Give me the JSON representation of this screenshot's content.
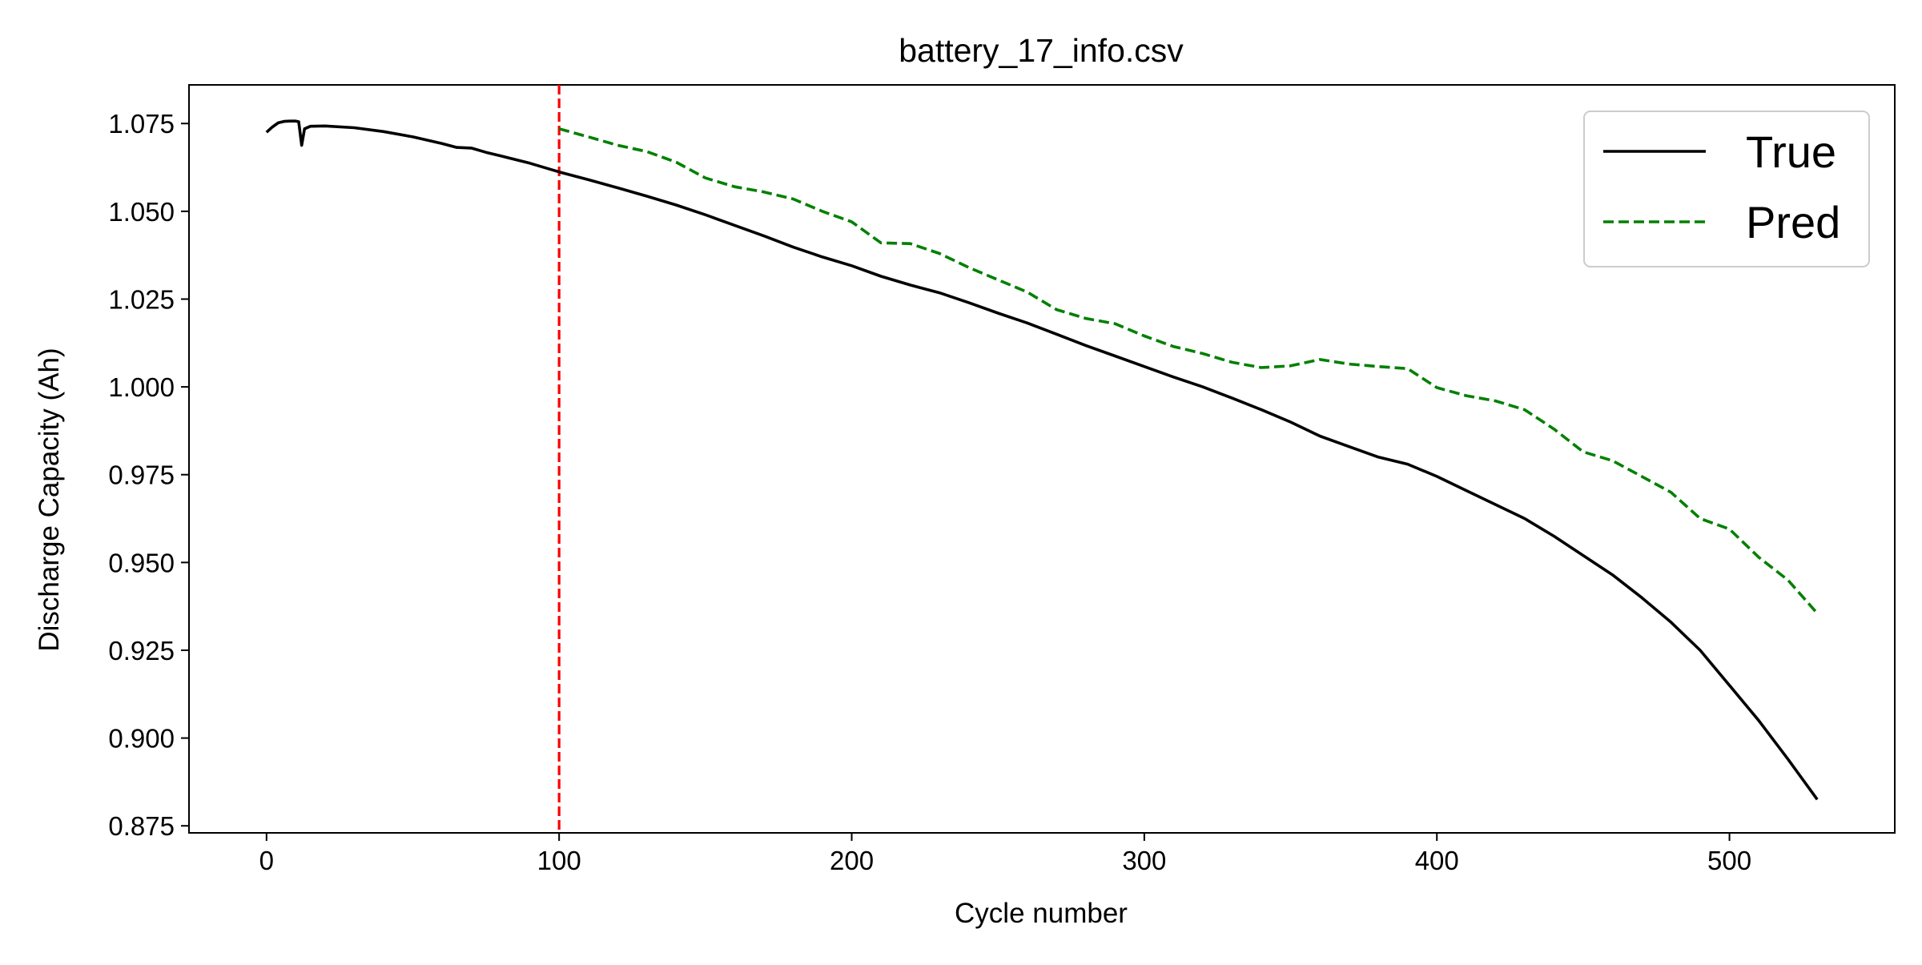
{
  "chart_data": {
    "type": "line",
    "title": "battery_17_info.csv",
    "xlabel": "Cycle number",
    "ylabel": "Discharge Capacity (Ah)",
    "xlim": [
      -26.5,
      556.5
    ],
    "ylim": [
      0.873,
      1.086
    ],
    "xticks": [
      {
        "value": 0,
        "label": "0"
      },
      {
        "value": 100,
        "label": "100"
      },
      {
        "value": 200,
        "label": "200"
      },
      {
        "value": 300,
        "label": "300"
      },
      {
        "value": 400,
        "label": "400"
      },
      {
        "value": 500,
        "label": "500"
      }
    ],
    "yticks": [
      {
        "value": 0.875,
        "label": "0.875"
      },
      {
        "value": 0.9,
        "label": "0.900"
      },
      {
        "value": 0.925,
        "label": "0.925"
      },
      {
        "value": 0.95,
        "label": "0.950"
      },
      {
        "value": 0.975,
        "label": "0.975"
      },
      {
        "value": 1.0,
        "label": "1.000"
      },
      {
        "value": 1.025,
        "label": "1.025"
      },
      {
        "value": 1.05,
        "label": "1.050"
      },
      {
        "value": 1.075,
        "label": "1.075"
      }
    ],
    "grid": false,
    "legend_position": "top-right",
    "vline": {
      "x": 100,
      "color": "#ff0000",
      "style": "dashed"
    },
    "series": [
      {
        "name": "True",
        "color": "#000000",
        "style": "solid",
        "x": [
          0,
          2,
          4,
          6,
          8,
          10,
          11,
          12,
          13,
          15,
          20,
          30,
          40,
          50,
          60,
          65,
          70,
          75,
          80,
          90,
          100,
          110,
          120,
          130,
          140,
          150,
          160,
          170,
          180,
          190,
          200,
          210,
          220,
          230,
          240,
          250,
          260,
          270,
          280,
          290,
          300,
          310,
          320,
          330,
          340,
          350,
          360,
          370,
          380,
          390,
          400,
          410,
          420,
          430,
          440,
          450,
          460,
          470,
          480,
          490,
          500,
          510,
          520,
          530
        ],
        "y": [
          1.0725,
          1.074,
          1.0752,
          1.0756,
          1.0757,
          1.0757,
          1.0755,
          1.0688,
          1.0735,
          1.0742,
          1.0743,
          1.0738,
          1.0727,
          1.0712,
          1.0693,
          1.0682,
          1.068,
          1.0668,
          1.0658,
          1.0637,
          1.0612,
          1.059,
          1.0567,
          1.0543,
          1.0518,
          1.049,
          1.046,
          1.043,
          1.0398,
          1.037,
          1.0345,
          1.0315,
          1.029,
          1.0268,
          1.024,
          1.021,
          1.0182,
          1.015,
          1.0118,
          1.0088,
          1.0058,
          1.0028,
          1.0,
          0.9968,
          0.9935,
          0.99,
          0.986,
          0.983,
          0.98,
          0.978,
          0.9745,
          0.9705,
          0.9665,
          0.9625,
          0.9575,
          0.952,
          0.9465,
          0.94,
          0.933,
          0.925,
          0.915,
          0.905,
          0.894,
          0.8825
        ]
      },
      {
        "name": "Pred",
        "color": "#008000",
        "style": "dashed",
        "x": [
          100,
          110,
          120,
          130,
          140,
          150,
          160,
          170,
          180,
          190,
          200,
          210,
          220,
          230,
          240,
          250,
          260,
          270,
          280,
          290,
          300,
          310,
          320,
          330,
          340,
          350,
          360,
          370,
          380,
          390,
          400,
          410,
          420,
          430,
          440,
          450,
          460,
          470,
          480,
          490,
          500,
          510,
          520,
          530
        ],
        "y": [
          1.0735,
          1.0712,
          1.0688,
          1.067,
          1.064,
          1.0595,
          1.057,
          1.0555,
          1.0535,
          1.05,
          1.047,
          1.041,
          1.0408,
          1.038,
          1.034,
          1.0305,
          1.027,
          1.022,
          1.0195,
          1.018,
          1.0145,
          1.0115,
          1.0095,
          1.007,
          1.0055,
          1.006,
          1.0078,
          1.0065,
          1.0058,
          1.0052,
          0.9998,
          0.9975,
          0.996,
          0.9935,
          0.988,
          0.9815,
          0.979,
          0.9745,
          0.97,
          0.9625,
          0.9595,
          0.9515,
          0.945,
          0.9355
        ]
      }
    ]
  }
}
